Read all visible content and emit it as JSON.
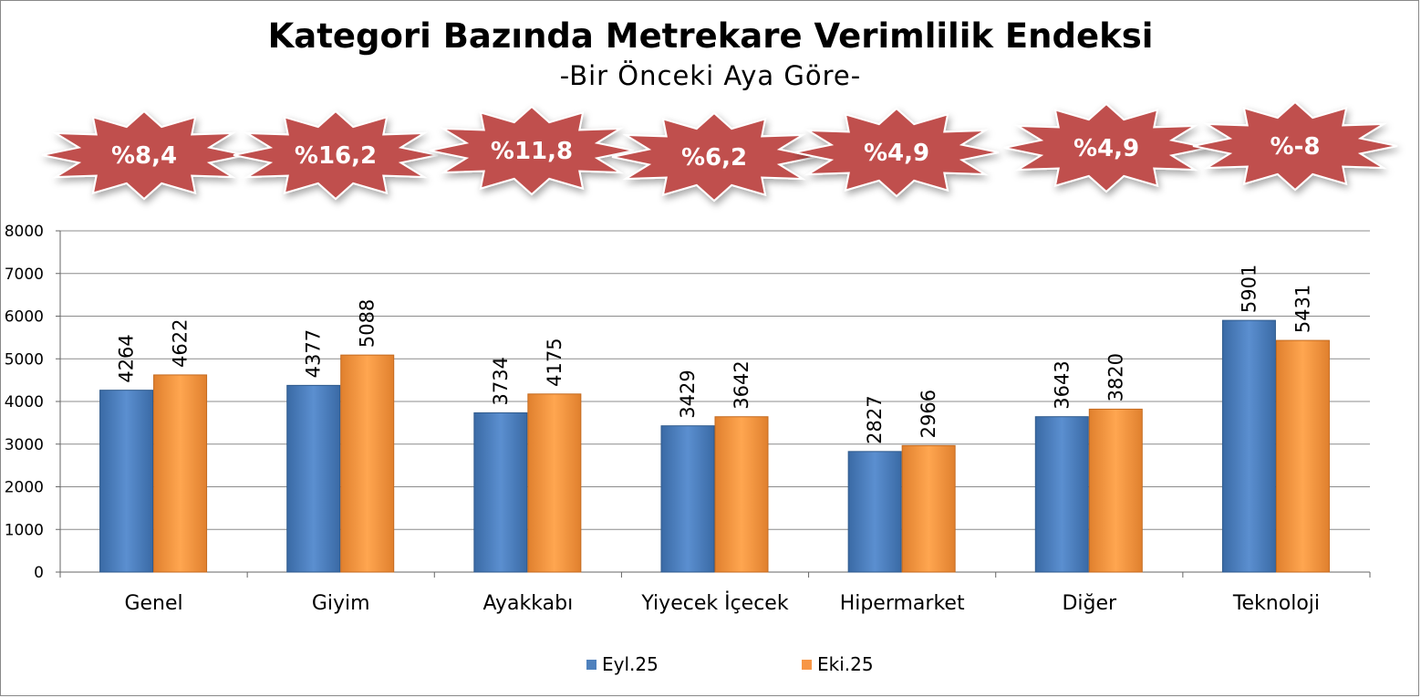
{
  "colors": {
    "series1": "#4f81bd",
    "series2": "#f79646",
    "star": "#c0504d",
    "grid": "#888888"
  },
  "chart_data": {
    "type": "bar",
    "title": "Kategori Bazında Metrekare Verimlilik Endeksi",
    "subtitle": "-Bir Önceki Aya Göre-",
    "categories": [
      "Genel",
      "Giyim",
      "Ayakkabı",
      "Yiyecek İçecek",
      "Hipermarket",
      "Diğer",
      "Teknoloji"
    ],
    "series": [
      {
        "name": "Eyl.25",
        "values": [
          4264,
          4377,
          3734,
          3429,
          2827,
          3643,
          5901
        ]
      },
      {
        "name": "Eki.25",
        "values": [
          4622,
          5088,
          4175,
          3642,
          2966,
          3820,
          5431
        ]
      }
    ],
    "change_badges": [
      "%8,4",
      "%16,2",
      "%11,8",
      "%6,2",
      "%4,9",
      "%4,9",
      "%-8"
    ],
    "ylim": [
      0,
      8000
    ],
    "yticks": [
      0,
      1000,
      2000,
      3000,
      4000,
      5000,
      6000,
      7000,
      8000
    ],
    "grid": true,
    "legend": "bottom",
    "xlabel": "",
    "ylabel": ""
  }
}
